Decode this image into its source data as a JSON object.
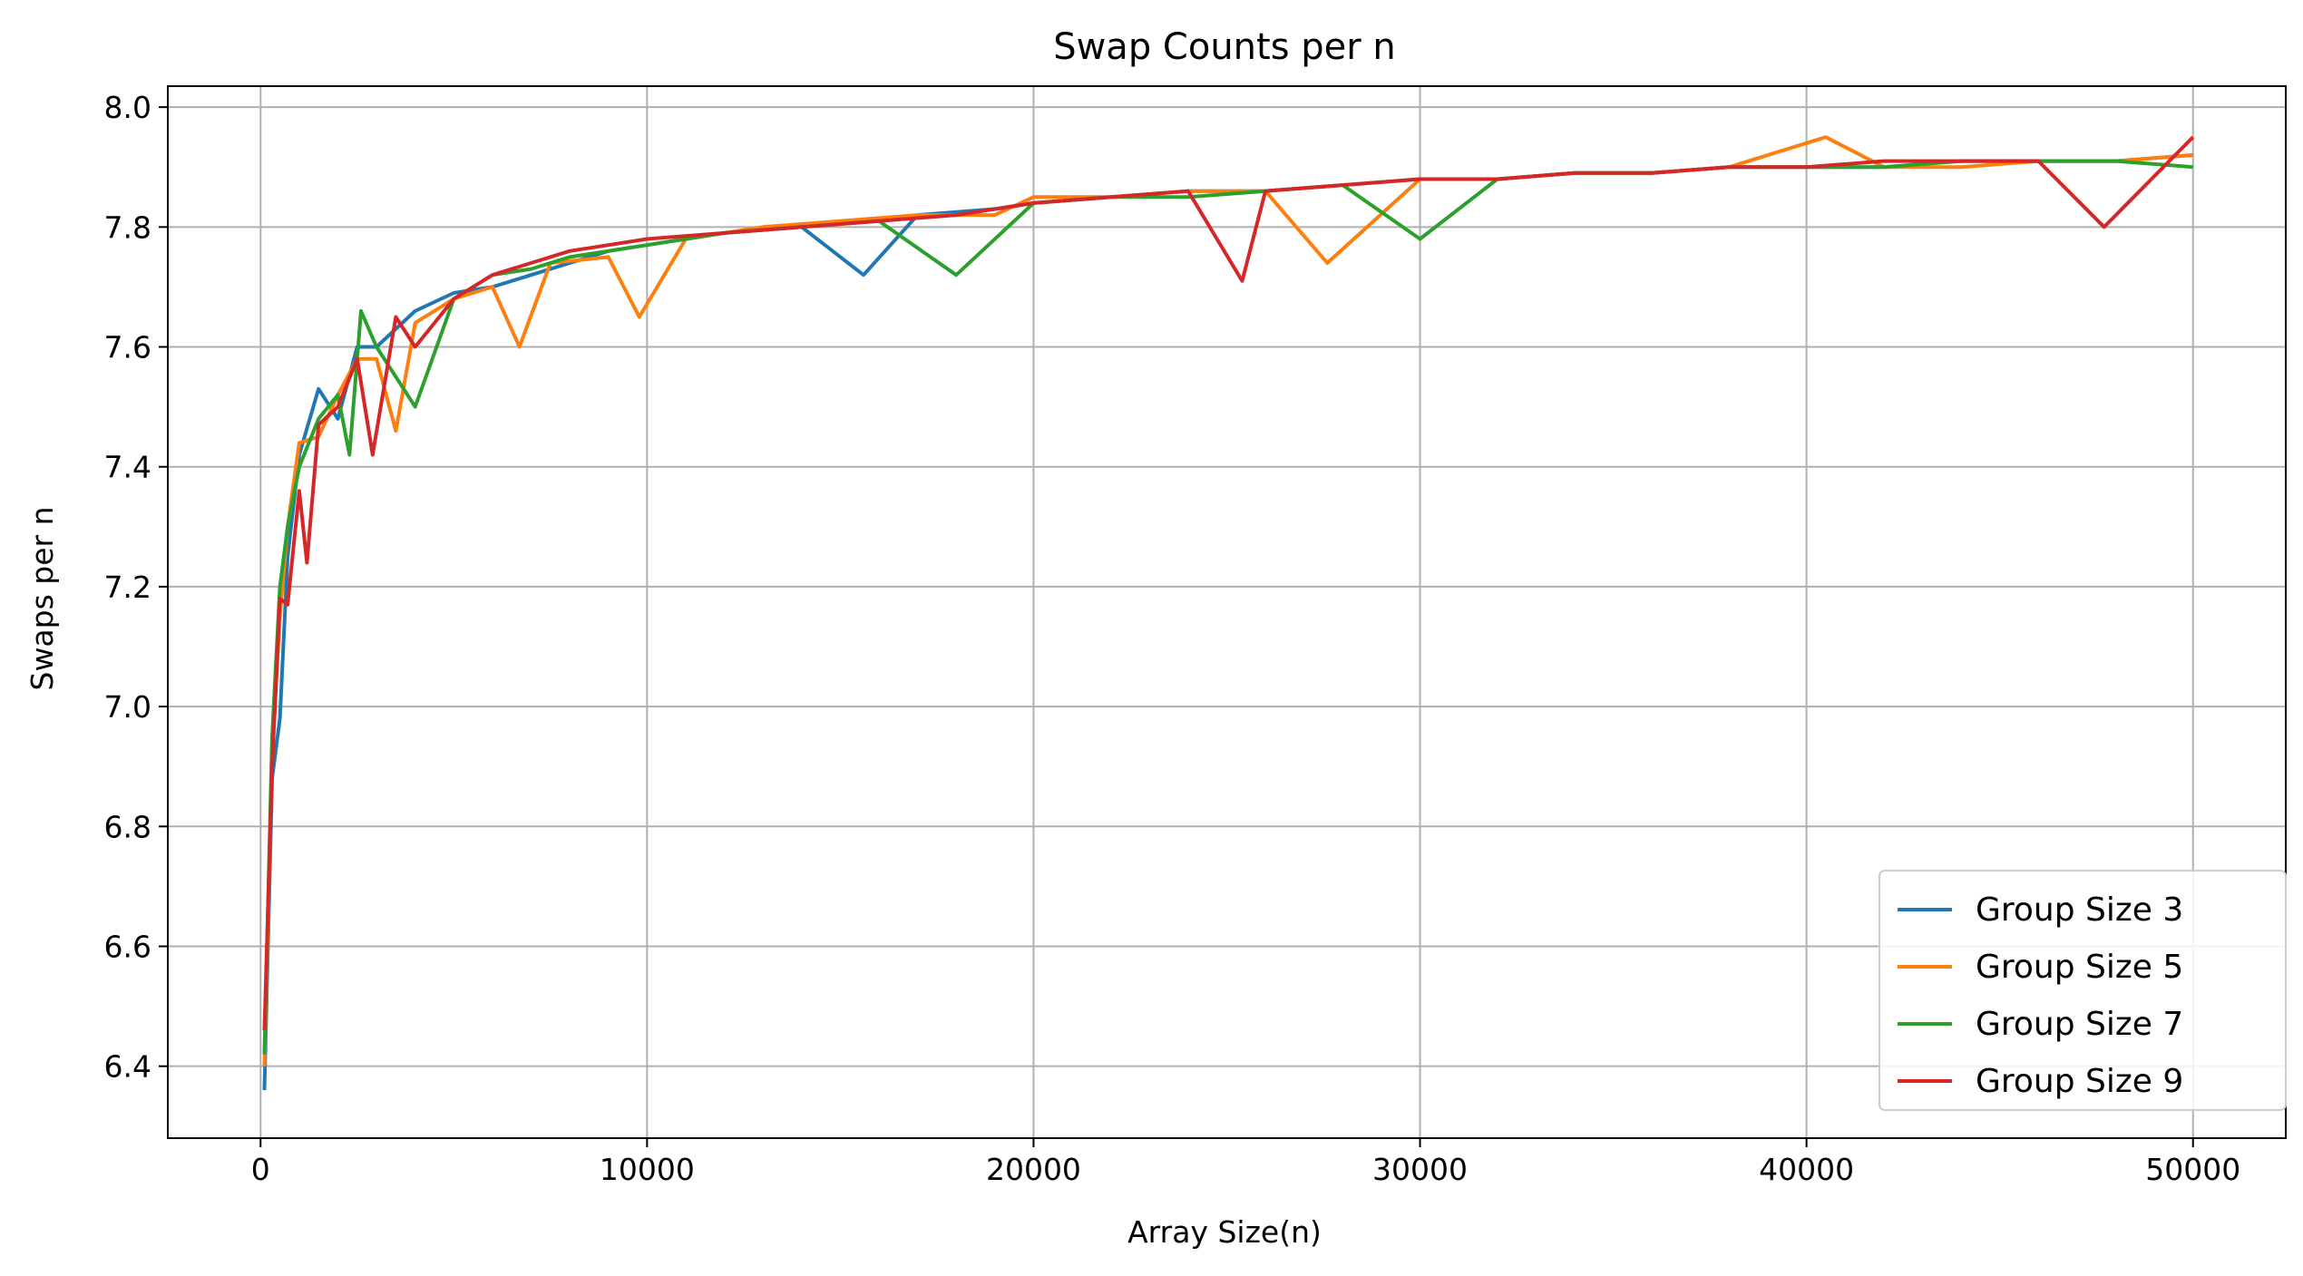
{
  "chart_data": {
    "type": "line",
    "title": "Swap Counts per n",
    "xlabel": "Array Size(n)",
    "ylabel": "Swaps per n",
    "xlim": [
      -2400,
      52400
    ],
    "ylim": [
      6.28,
      8.035
    ],
    "xticks": [
      0,
      10000,
      20000,
      30000,
      40000,
      50000
    ],
    "xtick_labels": [
      "0",
      "10000",
      "20000",
      "30000",
      "40000",
      "50000"
    ],
    "yticks": [
      6.4,
      6.6,
      6.8,
      7.0,
      7.2,
      7.4,
      7.6,
      7.8,
      8.0
    ],
    "ytick_labels": [
      "6.4",
      "6.6",
      "6.8",
      "7.0",
      "7.2",
      "7.4",
      "7.6",
      "7.8",
      "8.0"
    ],
    "grid": true,
    "legend_position": "lower-right",
    "series": [
      {
        "name": "Group Size 3",
        "color": "#1f77b4",
        "x": [
          100,
          300,
          500,
          700,
          1000,
          1500,
          2000,
          2500,
          3000,
          4000,
          5000,
          6000,
          7000,
          8000,
          9000,
          10000,
          12000,
          14000,
          15600,
          17000,
          19000,
          20000,
          22000,
          24000,
          26000,
          28000,
          30000,
          32000,
          34000,
          36000,
          38000,
          40000,
          42000,
          44000,
          46000,
          48000,
          50000
        ],
        "y": [
          6.36,
          6.88,
          6.98,
          7.25,
          7.42,
          7.53,
          7.48,
          7.6,
          7.6,
          7.66,
          7.69,
          7.7,
          7.72,
          7.74,
          7.76,
          7.77,
          7.79,
          7.8,
          7.72,
          7.82,
          7.83,
          7.84,
          7.85,
          7.86,
          7.86,
          7.87,
          7.88,
          7.88,
          7.89,
          7.89,
          7.9,
          7.9,
          7.9,
          7.91,
          7.91,
          7.91,
          7.92
        ]
      },
      {
        "name": "Group Size 5",
        "color": "#ff7f0e",
        "x": [
          100,
          300,
          500,
          700,
          1000,
          1500,
          2000,
          2500,
          3000,
          3500,
          4000,
          5000,
          6000,
          6700,
          7500,
          9000,
          9800,
          11000,
          13000,
          15000,
          17000,
          19000,
          20000,
          22000,
          24000,
          26000,
          27600,
          30000,
          32000,
          34000,
          36000,
          38000,
          40500,
          42000,
          44000,
          46000,
          48000,
          50000
        ],
        "y": [
          6.4,
          6.92,
          7.15,
          7.3,
          7.44,
          7.45,
          7.52,
          7.58,
          7.58,
          7.46,
          7.64,
          7.68,
          7.7,
          7.6,
          7.74,
          7.75,
          7.65,
          7.78,
          7.8,
          7.81,
          7.82,
          7.82,
          7.85,
          7.85,
          7.86,
          7.86,
          7.74,
          7.88,
          7.88,
          7.89,
          7.89,
          7.9,
          7.95,
          7.9,
          7.9,
          7.91,
          7.91,
          7.92
        ]
      },
      {
        "name": "Group Size 7",
        "color": "#2ca02c",
        "x": [
          100,
          300,
          500,
          700,
          1000,
          1500,
          2000,
          2300,
          2600,
          3000,
          4000,
          5000,
          6000,
          7000,
          8000,
          9000,
          10000,
          12000,
          14000,
          16000,
          18000,
          20000,
          22000,
          24000,
          26000,
          28000,
          30000,
          32000,
          34000,
          36000,
          38000,
          40000,
          42000,
          44000,
          46000,
          48000,
          50000
        ],
        "y": [
          6.42,
          6.95,
          7.2,
          7.3,
          7.4,
          7.48,
          7.52,
          7.42,
          7.66,
          7.6,
          7.5,
          7.68,
          7.72,
          7.73,
          7.75,
          7.76,
          7.77,
          7.79,
          7.8,
          7.81,
          7.72,
          7.84,
          7.85,
          7.85,
          7.86,
          7.87,
          7.78,
          7.88,
          7.89,
          7.89,
          7.9,
          7.9,
          7.9,
          7.91,
          7.91,
          7.91,
          7.9
        ]
      },
      {
        "name": "Group Size 9",
        "color": "#d62728",
        "x": [
          100,
          300,
          500,
          700,
          1000,
          1200,
          1500,
          2000,
          2500,
          2900,
          3500,
          4000,
          5000,
          6000,
          7000,
          8000,
          9000,
          10000,
          12000,
          14000,
          16000,
          18000,
          20000,
          22000,
          24000,
          25400,
          26000,
          28000,
          30000,
          32000,
          34000,
          36000,
          38000,
          40000,
          42000,
          44000,
          46000,
          47700,
          50000
        ],
        "y": [
          6.46,
          6.9,
          7.18,
          7.17,
          7.36,
          7.24,
          7.47,
          7.5,
          7.58,
          7.42,
          7.65,
          7.6,
          7.68,
          7.72,
          7.74,
          7.76,
          7.77,
          7.78,
          7.79,
          7.8,
          7.81,
          7.82,
          7.84,
          7.85,
          7.86,
          7.71,
          7.86,
          7.87,
          7.88,
          7.88,
          7.89,
          7.89,
          7.9,
          7.9,
          7.91,
          7.91,
          7.91,
          7.8,
          7.95
        ]
      }
    ]
  }
}
